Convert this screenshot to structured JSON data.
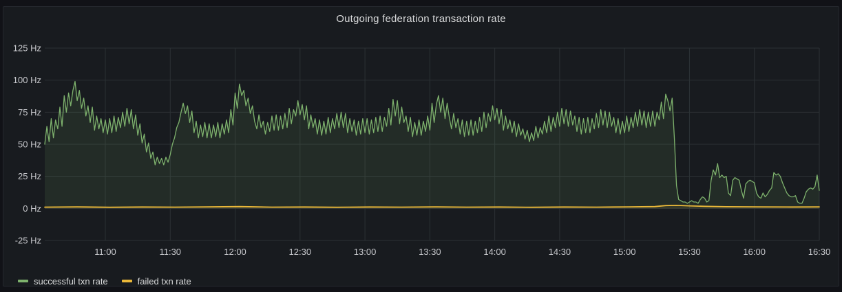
{
  "panel": {
    "title": "Outgoing federation transaction rate"
  },
  "colors": {
    "page_background": "#111217",
    "panel_background": "#181b1f",
    "panel_border": "#25282e",
    "grid": "#2c3235",
    "axis_text": "#c7c8cc",
    "title_text": "#d8d9da",
    "successful_series": "#7eb26d",
    "failed_series": "#eab839"
  },
  "chart_data": {
    "type": "line",
    "title": "Outgoing federation transaction rate",
    "unit": "Hz",
    "ylim": [
      -25,
      125
    ],
    "grid": true,
    "legend_position": "bottom-left",
    "y_ticks": [
      {
        "value": 125,
        "label": "125 Hz"
      },
      {
        "value": 100,
        "label": "100 Hz"
      },
      {
        "value": 75,
        "label": "75 Hz"
      },
      {
        "value": 50,
        "label": "50 Hz"
      },
      {
        "value": 25,
        "label": "25 Hz"
      },
      {
        "value": 0,
        "label": "0 Hz"
      },
      {
        "value": -25,
        "label": "-25 Hz"
      }
    ],
    "x_total_minutes": 358,
    "x_ticks": [
      {
        "minute": 28,
        "label": "11:00"
      },
      {
        "minute": 58,
        "label": "11:30"
      },
      {
        "minute": 88,
        "label": "12:00"
      },
      {
        "minute": 118,
        "label": "12:30"
      },
      {
        "minute": 148,
        "label": "13:00"
      },
      {
        "minute": 178,
        "label": "13:30"
      },
      {
        "minute": 208,
        "label": "14:00"
      },
      {
        "minute": 238,
        "label": "14:30"
      },
      {
        "minute": 268,
        "label": "15:00"
      },
      {
        "minute": 298,
        "label": "15:30"
      },
      {
        "minute": 328,
        "label": "16:00"
      },
      {
        "minute": 358,
        "label": "16:30"
      }
    ],
    "series": [
      {
        "name": "successful txn rate",
        "color": "#7eb26d",
        "fill_opacity": 0.11,
        "interval_minutes": 1,
        "values": [
          50,
          64,
          52,
          70,
          55,
          69,
          62,
          79,
          64,
          88,
          75,
          90,
          80,
          92,
          99,
          84,
          92,
          78,
          86,
          72,
          80,
          67,
          79,
          61,
          72,
          62,
          70,
          59,
          69,
          58,
          70,
          59,
          72,
          60,
          71,
          63,
          75,
          64,
          78,
          66,
          77,
          62,
          73,
          57,
          66,
          51,
          58,
          44,
          51,
          39,
          44,
          34,
          40,
          35,
          39,
          34,
          40,
          36,
          42,
          50,
          55,
          63,
          67,
          75,
          82,
          74,
          80,
          67,
          76,
          59,
          68,
          55,
          65,
          56,
          67,
          55,
          66,
          55,
          65,
          56,
          67,
          55,
          66,
          58,
          69,
          59,
          77,
          65,
          90,
          78,
          97,
          88,
          92,
          80,
          86,
          74,
          80,
          68,
          62,
          73,
          63,
          68,
          58,
          67,
          60,
          72,
          61,
          73,
          61,
          72,
          62,
          74,
          63,
          78,
          66,
          77,
          72,
          84,
          73,
          81,
          69,
          80,
          62,
          73,
          63,
          70,
          58,
          69,
          57,
          68,
          58,
          71,
          59,
          70,
          62,
          74,
          63,
          75,
          63,
          74,
          59,
          70,
          60,
          69,
          57,
          68,
          58,
          70,
          59,
          70,
          58,
          69,
          59,
          71,
          60,
          72,
          60,
          71,
          64,
          78,
          65,
          85,
          72,
          84,
          66,
          79,
          67,
          72,
          60,
          71,
          56,
          67,
          57,
          69,
          57,
          68,
          60,
          72,
          61,
          82,
          67,
          81,
          88,
          75,
          86,
          70,
          82,
          71,
          62,
          74,
          63,
          70,
          58,
          69,
          56,
          68,
          57,
          69,
          57,
          68,
          59,
          71,
          60,
          75,
          63,
          74,
          68,
          80,
          69,
          78,
          66,
          77,
          61,
          72,
          62,
          69,
          59,
          68,
          56,
          66,
          57,
          62,
          54,
          61,
          52,
          59,
          53,
          64,
          55,
          63,
          58,
          68,
          59,
          72,
          60,
          71,
          63,
          75,
          64,
          78,
          66,
          77,
          64,
          76,
          65,
          72,
          60,
          71,
          58,
          70,
          59,
          71,
          59,
          70,
          62,
          74,
          63,
          77,
          65,
          76,
          63,
          75,
          64,
          71,
          59,
          70,
          58,
          68,
          59,
          72,
          60,
          71,
          63,
          75,
          64,
          77,
          65,
          76,
          63,
          75,
          64,
          76,
          64,
          75,
          69,
          83,
          70,
          89,
          84,
          76,
          86,
          55,
          18,
          7,
          6,
          5,
          5,
          4,
          5,
          6,
          5,
          5,
          4,
          7,
          9,
          8,
          5,
          6,
          22,
          30,
          26,
          35,
          24,
          26,
          24,
          25,
          12,
          10,
          22,
          24,
          23,
          22,
          14,
          8,
          19,
          21,
          22,
          21,
          20,
          12,
          9,
          8,
          12,
          9,
          11,
          14,
          16,
          28,
          26,
          27,
          25,
          20,
          16,
          12,
          10,
          9,
          9,
          10,
          5,
          4,
          4,
          8,
          13,
          15,
          16,
          15,
          17,
          26,
          14
        ]
      },
      {
        "name": "failed txn rate",
        "color": "#eab839",
        "fill_opacity": 0.1,
        "points": [
          [
            0,
            1
          ],
          [
            15,
            1.2
          ],
          [
            30,
            0.9
          ],
          [
            45,
            1.1
          ],
          [
            60,
            1
          ],
          [
            75,
            1.2
          ],
          [
            90,
            1.4
          ],
          [
            105,
            1
          ],
          [
            120,
            1.1
          ],
          [
            135,
            0.9
          ],
          [
            150,
            1.1
          ],
          [
            165,
            1
          ],
          [
            180,
            1.2
          ],
          [
            195,
            1
          ],
          [
            210,
            1.1
          ],
          [
            225,
            0.9
          ],
          [
            240,
            1.1
          ],
          [
            255,
            1
          ],
          [
            270,
            1.2
          ],
          [
            282,
            1.4
          ],
          [
            287,
            2.2
          ],
          [
            292,
            2.4
          ],
          [
            298,
            2
          ],
          [
            305,
            1.6
          ],
          [
            315,
            1.3
          ],
          [
            330,
            1.2
          ],
          [
            345,
            1.1
          ],
          [
            358,
            1.2
          ]
        ]
      }
    ]
  }
}
